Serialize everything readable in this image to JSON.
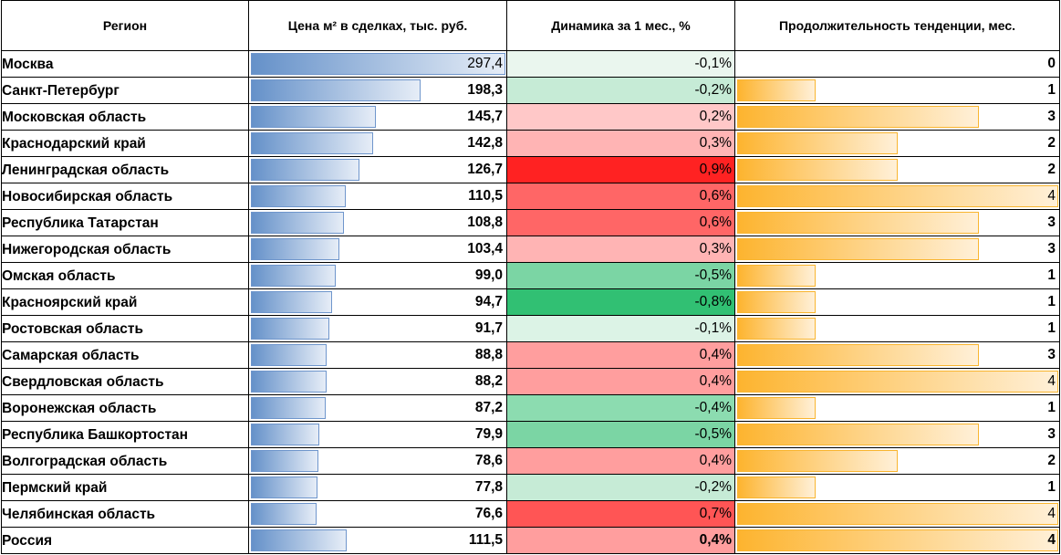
{
  "table": {
    "headers": {
      "region": "Регион",
      "price": "Цена м² в сделках, тыс. руб.",
      "dynamics": "Динамика за 1 мес., %",
      "duration": "Продолжительность тенденции, мес."
    },
    "scales": {
      "price_max": 297.4,
      "duration_max": 4
    },
    "rows": [
      {
        "region": "Москва",
        "price": "297,4",
        "price_value": 297.4,
        "dynamics": "-0,1%",
        "dynamics_color": "#eaf6ee",
        "duration": "0",
        "duration_value": 0,
        "price_light": true
      },
      {
        "region": "Санкт-Петербург",
        "price": "198,3",
        "price_value": 198.3,
        "dynamics": "-0,2%",
        "dynamics_color": "#c6ebd6",
        "duration": "1",
        "duration_value": 1
      },
      {
        "region": "Московская область",
        "price": "145,7",
        "price_value": 145.7,
        "dynamics": "0,2%",
        "dynamics_color": "#ffc8c8",
        "duration": "3",
        "duration_value": 3
      },
      {
        "region": "Краснодарский край",
        "price": "142,8",
        "price_value": 142.8,
        "dynamics": "0,3%",
        "dynamics_color": "#ffb4b4",
        "duration": "2",
        "duration_value": 2
      },
      {
        "region": "Ленинградская область",
        "price": "126,7",
        "price_value": 126.7,
        "dynamics": "0,9%",
        "dynamics_color": "#ff2222",
        "duration": "2",
        "duration_value": 2
      },
      {
        "region": "Новосибирская область",
        "price": "110,5",
        "price_value": 110.5,
        "dynamics": "0,6%",
        "dynamics_color": "#ff6666",
        "duration": "4",
        "duration_value": 4,
        "duration_light": true
      },
      {
        "region": "Республика Татарстан",
        "price": "108,8",
        "price_value": 108.8,
        "dynamics": "0,6%",
        "dynamics_color": "#ff6666",
        "duration": "3",
        "duration_value": 3
      },
      {
        "region": "Нижегородская область",
        "price": "103,4",
        "price_value": 103.4,
        "dynamics": "0,3%",
        "dynamics_color": "#ffb4b4",
        "duration": "3",
        "duration_value": 3
      },
      {
        "region": "Омская область",
        "price": "99,0",
        "price_value": 99.0,
        "dynamics": "-0,5%",
        "dynamics_color": "#7bd5a4",
        "duration": "1",
        "duration_value": 1
      },
      {
        "region": "Красноярский край",
        "price": "94,7",
        "price_value": 94.7,
        "dynamics": "-0,8%",
        "dynamics_color": "#31c073",
        "duration": "1",
        "duration_value": 1
      },
      {
        "region": "Ростовская область",
        "price": "91,7",
        "price_value": 91.7,
        "dynamics": "-0,1%",
        "dynamics_color": "#dcf3e6",
        "duration": "1",
        "duration_value": 1
      },
      {
        "region": "Самарская область",
        "price": "88,8",
        "price_value": 88.8,
        "dynamics": "0,4%",
        "dynamics_color": "#ff9e9e",
        "duration": "3",
        "duration_value": 3
      },
      {
        "region": "Свердловская область",
        "price": "88,2",
        "price_value": 88.2,
        "dynamics": "0,4%",
        "dynamics_color": "#ff9e9e",
        "duration": "4",
        "duration_value": 4,
        "duration_light": true
      },
      {
        "region": "Воронежская область",
        "price": "87,2",
        "price_value": 87.2,
        "dynamics": "-0,4%",
        "dynamics_color": "#8cdcb0",
        "duration": "1",
        "duration_value": 1
      },
      {
        "region": "Республика Башкортостан",
        "price": "79,9",
        "price_value": 79.9,
        "dynamics": "-0,5%",
        "dynamics_color": "#7bd5a4",
        "duration": "3",
        "duration_value": 3
      },
      {
        "region": "Волгоградская область",
        "price": "78,6",
        "price_value": 78.6,
        "dynamics": "0,4%",
        "dynamics_color": "#ff9e9e",
        "duration": "2",
        "duration_value": 2
      },
      {
        "region": "Пермский край",
        "price": "77,8",
        "price_value": 77.8,
        "dynamics": "-0,2%",
        "dynamics_color": "#c6ebd6",
        "duration": "1",
        "duration_value": 1
      },
      {
        "region": "Челябинская область",
        "price": "76,6",
        "price_value": 76.6,
        "dynamics": "0,7%",
        "dynamics_color": "#ff5555",
        "duration": "4",
        "duration_value": 4,
        "duration_light": true
      },
      {
        "region": "Россия",
        "price": "111,5",
        "price_value": 111.5,
        "dynamics": "0,4%",
        "dynamics_color": "#ff9e9e",
        "duration": "4",
        "duration_value": 4,
        "total": true
      }
    ]
  }
}
